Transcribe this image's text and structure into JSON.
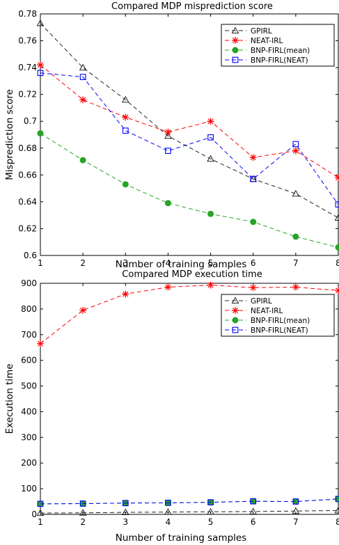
{
  "chart_data": [
    {
      "type": "line",
      "title": "Compared MDP misprediction score",
      "xlabel": "Number of training samples",
      "ylabel": "Misprediction score",
      "x": [
        1,
        2,
        3,
        4,
        5,
        6,
        7,
        8
      ],
      "xlim": [
        1,
        8
      ],
      "ylim": [
        0.6,
        0.78
      ],
      "yticks": [
        0.6,
        0.62,
        0.64,
        0.66,
        0.68,
        0.7,
        0.72,
        0.74,
        0.76,
        0.78
      ],
      "ytick_labels": [
        "0.6",
        "0.62",
        "0.64",
        "0.66",
        "0.68",
        "0.7",
        "0.72",
        "0.74",
        "0.76",
        "0.78"
      ],
      "grid": false,
      "legend_position": "top-right",
      "series": [
        {
          "name": "GPIRL",
          "color": "#222222",
          "marker": "triangle",
          "values": [
            0.773,
            0.74,
            0.716,
            0.689,
            0.672,
            0.657,
            0.646,
            0.628
          ]
        },
        {
          "name": "NEAT-IRL",
          "color": "#ff0000",
          "marker": "star",
          "values": [
            0.742,
            0.716,
            0.703,
            0.692,
            0.7,
            0.673,
            0.678,
            0.658
          ]
        },
        {
          "name": "BNP-FIRL(mean)",
          "color": "#27a327",
          "marker": "dot",
          "values": [
            0.691,
            0.671,
            0.653,
            0.639,
            0.631,
            0.625,
            0.614,
            0.606
          ]
        },
        {
          "name": "BNP-FIRL(NEAT)",
          "color": "#0000ff",
          "marker": "square",
          "values": [
            0.736,
            0.733,
            0.693,
            0.678,
            0.688,
            0.657,
            0.683,
            0.638
          ]
        }
      ]
    },
    {
      "type": "line",
      "title": "Compared MDP execution time",
      "xlabel": "Number of training samples",
      "ylabel": "Execution time",
      "x": [
        1,
        2,
        3,
        4,
        5,
        6,
        7,
        8
      ],
      "xlim": [
        1,
        8
      ],
      "ylim": [
        0,
        900
      ],
      "yticks": [
        0,
        100,
        200,
        300,
        400,
        500,
        600,
        700,
        800,
        900
      ],
      "ytick_labels": [
        "0",
        "100",
        "200",
        "300",
        "400",
        "500",
        "600",
        "700",
        "800",
        "900"
      ],
      "grid": false,
      "legend_position": "top-right",
      "series": [
        {
          "name": "GPIRL",
          "color": "#222222",
          "marker": "triangle",
          "values": [
            5,
            6,
            8,
            9,
            10,
            11,
            13,
            15
          ]
        },
        {
          "name": "NEAT-IRL",
          "color": "#ff0000",
          "marker": "star",
          "values": [
            665,
            795,
            858,
            885,
            893,
            883,
            885,
            872
          ]
        },
        {
          "name": "BNP-FIRL(mean)",
          "color": "#27a327",
          "marker": "dot",
          "values": [
            41,
            42,
            44,
            45,
            47,
            51,
            50,
            60
          ]
        },
        {
          "name": "BNP-FIRL(NEAT)",
          "color": "#0000ff",
          "marker": "square",
          "values": [
            41,
            42,
            44,
            45,
            47,
            51,
            50,
            60
          ]
        }
      ]
    }
  ]
}
